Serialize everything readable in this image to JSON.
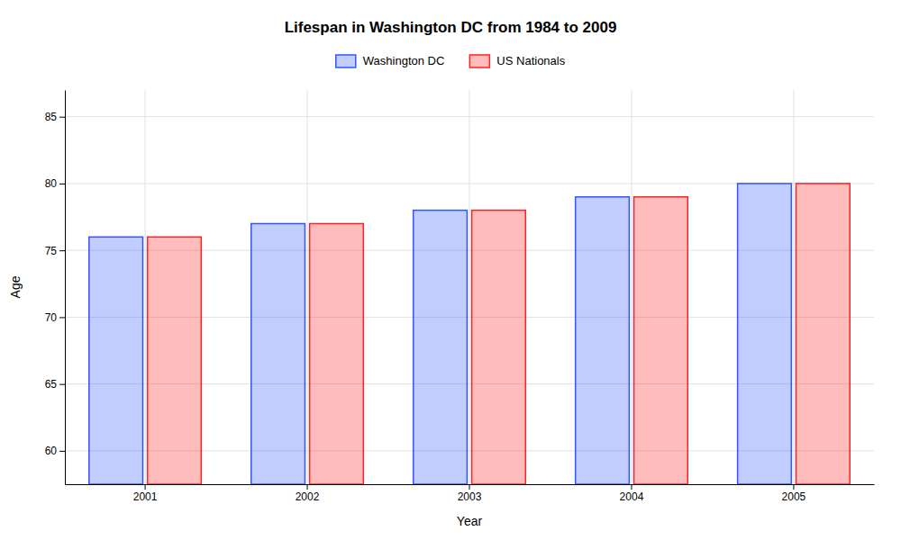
{
  "chart_data": {
    "type": "bar",
    "title": "Lifespan in Washington DC from 1984 to 2009",
    "xlabel": "Year",
    "ylabel": "Age",
    "categories": [
      "2001",
      "2002",
      "2003",
      "2004",
      "2005"
    ],
    "series": [
      {
        "name": "Washington DC",
        "color": "#3355ff",
        "values": [
          76,
          77,
          78,
          79,
          80
        ]
      },
      {
        "name": "US Nationals",
        "color": "#ff2222",
        "values": [
          76,
          77,
          78,
          79,
          80
        ]
      }
    ],
    "ylim": [
      57.5,
      87
    ],
    "yticks": [
      60,
      65,
      70,
      75,
      80,
      85
    ],
    "grid": true,
    "legend": "top"
  }
}
